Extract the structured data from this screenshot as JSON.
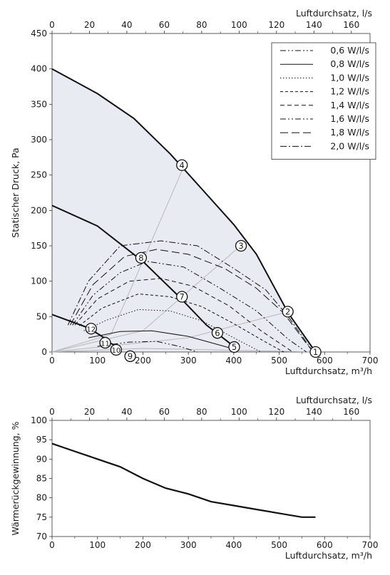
{
  "chart_data": [
    {
      "type": "line",
      "xlabel": "Luftdurchsatz, m³/h",
      "ylabel": "Statischer Druck, Pa",
      "x2label": "Luftdurchsatz, l/s",
      "xlim": [
        0,
        700
      ],
      "ylim": [
        0,
        450
      ],
      "x2lim": [
        0,
        170
      ],
      "xticks": [
        0,
        100,
        200,
        300,
        400,
        500,
        600,
        700
      ],
      "yticks": [
        0,
        50,
        100,
        150,
        200,
        250,
        300,
        350,
        400,
        450
      ],
      "x2ticks": [
        0,
        20,
        40,
        60,
        80,
        100,
        120,
        140,
        160
      ],
      "colors": {
        "envelope_fill": "#e9ebf3",
        "curves": "#111111",
        "system_lines": "#b4b4b4"
      },
      "legend_position": "top-right",
      "legend": [
        {
          "label": "0,6 W/l/s",
          "dash": "dashdotdot"
        },
        {
          "label": "0,8 W/l/s",
          "dash": "solid"
        },
        {
          "label": "1,0 W/l/s",
          "dash": "dotted"
        },
        {
          "label": "1,2 W/l/s",
          "dash": "shortdash"
        },
        {
          "label": "1,4 W/l/s",
          "dash": "dash"
        },
        {
          "label": "1,6 W/l/s",
          "dash": "dashdotdot"
        },
        {
          "label": "1,8 W/l/s",
          "dash": "longdash"
        },
        {
          "label": "2,0 W/l/s",
          "dash": "dashdot"
        }
      ],
      "fan_curves": [
        {
          "x": [
            0,
            100,
            180,
            260,
            330,
            400,
            450,
            520,
            580
          ],
          "y": [
            400,
            365,
            330,
            280,
            230,
            180,
            138,
            55,
            0
          ]
        },
        {
          "x": [
            0,
            100,
            200,
            280,
            340,
            400
          ],
          "y": [
            207,
            178,
            128,
            78,
            38,
            8
          ]
        },
        {
          "x": [
            0,
            80,
            110,
            130,
            150
          ],
          "y": [
            53,
            34,
            22,
            12,
            6
          ]
        }
      ],
      "power_curves": [
        {
          "dash": "dashdotdot",
          "x": [
            100,
            170,
            230,
            280,
            320
          ],
          "y": [
            8,
            14,
            15,
            8,
            0
          ]
        },
        {
          "dash": "solid",
          "x": [
            80,
            150,
            220,
            300,
            390
          ],
          "y": [
            20,
            29,
            30,
            22,
            6
          ]
        },
        {
          "dash": "dotted",
          "x": [
            70,
            120,
            190,
            260,
            330,
            400,
            460
          ],
          "y": [
            30,
            45,
            60,
            58,
            44,
            20,
            0
          ]
        },
        {
          "dash": "shortdash",
          "x": [
            60,
            110,
            190,
            260,
            330,
            400,
            470,
            510
          ],
          "y": [
            37,
            62,
            82,
            78,
            64,
            40,
            14,
            0
          ]
        },
        {
          "dash": "dash",
          "x": [
            50,
            100,
            170,
            240,
            310,
            390,
            460,
            530
          ],
          "y": [
            38,
            75,
            100,
            104,
            93,
            65,
            30,
            0
          ]
        },
        {
          "dash": "dashdotdot",
          "x": [
            45,
            90,
            150,
            210,
            290,
            370,
            450,
            520,
            560
          ],
          "y": [
            38,
            80,
            112,
            128,
            120,
            90,
            58,
            18,
            0
          ]
        },
        {
          "dash": "longdash",
          "x": [
            40,
            90,
            160,
            230,
            300,
            380,
            450,
            510,
            560,
            575
          ],
          "y": [
            38,
            95,
            135,
            145,
            138,
            118,
            90,
            55,
            12,
            0
          ]
        },
        {
          "dash": "dashdot",
          "x": [
            35,
            80,
            150,
            240,
            320,
            400,
            470,
            520,
            575
          ],
          "y": [
            38,
            100,
            150,
            157,
            150,
            118,
            88,
            50,
            0
          ]
        }
      ],
      "system_curves": [
        {
          "x": [
            0,
            130,
            290
          ],
          "y": [
            0,
            25,
            262
          ]
        },
        {
          "x": [
            0,
            200,
            415
          ],
          "y": [
            0,
            30,
            150
          ]
        },
        {
          "x": [
            0,
            300,
            520
          ],
          "y": [
            0,
            20,
            57
          ]
        },
        {
          "x": [
            0,
            200,
            580
          ],
          "y": [
            0,
            5,
            0
          ]
        }
      ],
      "points": [
        {
          "label": "1",
          "x": 580,
          "y": 0
        },
        {
          "label": "2",
          "x": 519,
          "y": 57
        },
        {
          "label": "3",
          "x": 416,
          "y": 150
        },
        {
          "label": "4",
          "x": 286,
          "y": 264
        },
        {
          "label": "5",
          "x": 401,
          "y": 7
        },
        {
          "label": "6",
          "x": 364,
          "y": 27
        },
        {
          "label": "7",
          "x": 286,
          "y": 78
        },
        {
          "label": "8",
          "x": 196,
          "y": 133
        },
        {
          "label": "9",
          "x": 172,
          "y": -6
        },
        {
          "label": "10",
          "x": 141,
          "y": 3
        },
        {
          "label": "11",
          "x": 117,
          "y": 13
        },
        {
          "label": "12",
          "x": 86,
          "y": 33
        }
      ]
    },
    {
      "type": "line",
      "xlabel": "Luftdurchsatz, m³/h",
      "ylabel": "Wärmerückgewinnung, %",
      "x2label": "Luftdurchsatz, l/s",
      "xlim": [
        0,
        700
      ],
      "ylim": [
        70,
        100
      ],
      "x2lim": [
        0,
        170
      ],
      "xticks": [
        0,
        100,
        200,
        300,
        400,
        500,
        600,
        700
      ],
      "yticks": [
        70,
        75,
        80,
        85,
        90,
        95,
        100
      ],
      "x2ticks": [
        0,
        20,
        40,
        60,
        80,
        100,
        120,
        140,
        160
      ],
      "series": [
        {
          "x": [
            0,
            50,
            100,
            150,
            200,
            250,
            300,
            350,
            400,
            450,
            500,
            550,
            580
          ],
          "y": [
            94,
            92,
            90,
            88,
            85,
            82.5,
            81,
            79,
            78,
            77,
            76,
            75,
            75
          ]
        }
      ]
    }
  ]
}
